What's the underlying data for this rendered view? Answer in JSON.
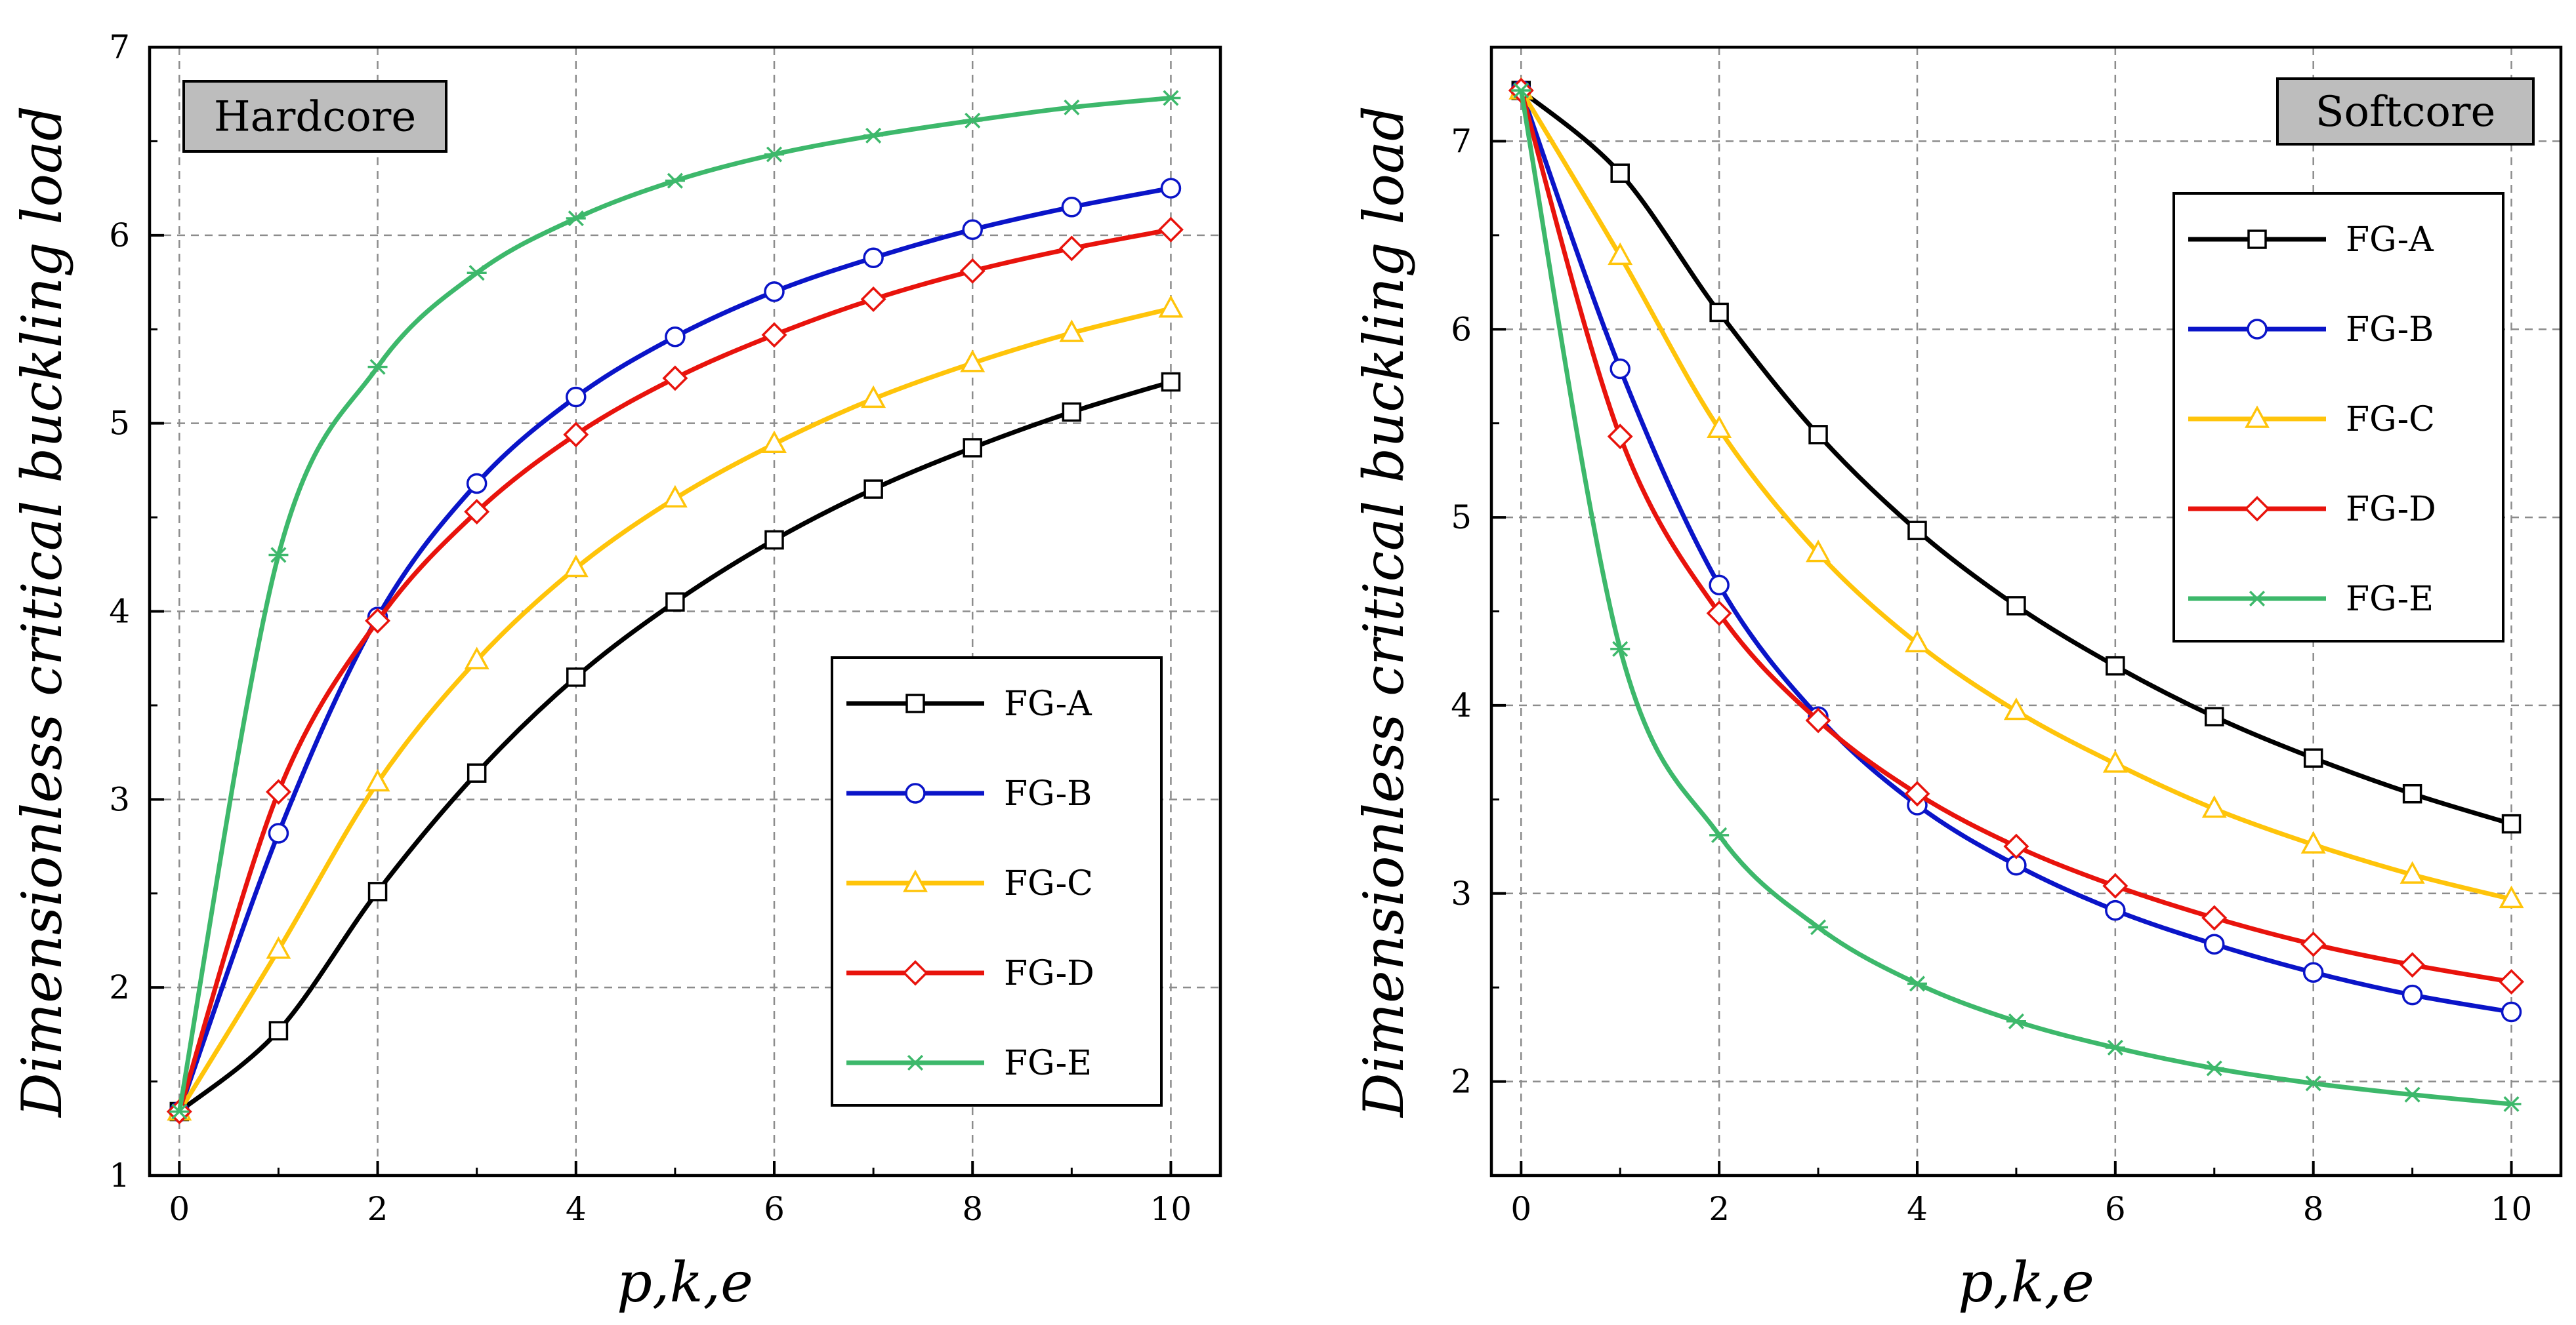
{
  "chart_data": [
    {
      "type": "line",
      "badge": "Hardcore",
      "xlabel": "p,k,e",
      "ylabel": "Dimensionless critical buckling load",
      "xlim": [
        -0.3,
        10.5
      ],
      "ylim": [
        1,
        7
      ],
      "xticks": [
        0,
        2,
        4,
        6,
        8,
        10
      ],
      "yticks": [
        1,
        2,
        3,
        4,
        5,
        6,
        7
      ],
      "grid": true,
      "legend_position": "bottom-right",
      "x": [
        0,
        1,
        2,
        3,
        4,
        5,
        6,
        7,
        8,
        9,
        10
      ],
      "series": [
        {
          "name": "FG-A",
          "color": "#000000",
          "marker": "square",
          "values": [
            1.34,
            1.77,
            2.51,
            3.14,
            3.65,
            4.05,
            4.38,
            4.65,
            4.87,
            5.06,
            5.22
          ]
        },
        {
          "name": "FG-B",
          "color": "#0a14c8",
          "marker": "circle",
          "values": [
            1.34,
            2.82,
            3.97,
            4.68,
            5.14,
            5.46,
            5.7,
            5.88,
            6.03,
            6.15,
            6.25
          ]
        },
        {
          "name": "FG-C",
          "color": "#ffc40a",
          "marker": "triangle",
          "values": [
            1.34,
            2.2,
            3.09,
            3.74,
            4.23,
            4.6,
            4.89,
            5.13,
            5.32,
            5.48,
            5.61
          ]
        },
        {
          "name": "FG-D",
          "color": "#e8130c",
          "marker": "diamond",
          "values": [
            1.34,
            3.04,
            3.95,
            4.53,
            4.94,
            5.24,
            5.47,
            5.66,
            5.81,
            5.93,
            6.03
          ]
        },
        {
          "name": "FG-E",
          "color": "#3db86b",
          "marker": "asterisk",
          "values": [
            1.34,
            4.3,
            5.3,
            5.8,
            6.09,
            6.29,
            6.43,
            6.53,
            6.61,
            6.68,
            6.73
          ]
        }
      ]
    },
    {
      "type": "line",
      "badge": "Softcore",
      "xlabel": "p,k,e",
      "ylabel": "Dimensionless critical buckling load",
      "xlim": [
        -0.3,
        10.5
      ],
      "ylim": [
        1.5,
        7.5
      ],
      "xticks": [
        0,
        2,
        4,
        6,
        8,
        10
      ],
      "yticks": [
        2,
        3,
        4,
        5,
        6,
        7
      ],
      "grid": true,
      "legend_position": "top-right",
      "x": [
        0,
        1,
        2,
        3,
        4,
        5,
        6,
        7,
        8,
        9,
        10
      ],
      "series": [
        {
          "name": "FG-A",
          "color": "#000000",
          "marker": "square",
          "values": [
            7.27,
            6.83,
            6.09,
            5.44,
            4.93,
            4.53,
            4.21,
            3.94,
            3.72,
            3.53,
            3.37
          ]
        },
        {
          "name": "FG-B",
          "color": "#0a14c8",
          "marker": "circle",
          "values": [
            7.27,
            5.79,
            4.64,
            3.94,
            3.47,
            3.15,
            2.91,
            2.73,
            2.58,
            2.46,
            2.37
          ]
        },
        {
          "name": "FG-C",
          "color": "#ffc40a",
          "marker": "triangle",
          "values": [
            7.27,
            6.39,
            5.47,
            4.81,
            4.33,
            3.97,
            3.69,
            3.45,
            3.26,
            3.1,
            2.97
          ]
        },
        {
          "name": "FG-D",
          "color": "#e8130c",
          "marker": "diamond",
          "values": [
            7.27,
            5.43,
            4.49,
            3.92,
            3.53,
            3.25,
            3.04,
            2.87,
            2.73,
            2.62,
            2.53
          ]
        },
        {
          "name": "FG-E",
          "color": "#3db86b",
          "marker": "asterisk",
          "values": [
            7.27,
            4.3,
            3.31,
            2.82,
            2.52,
            2.32,
            2.18,
            2.07,
            1.99,
            1.93,
            1.88
          ]
        }
      ]
    }
  ]
}
